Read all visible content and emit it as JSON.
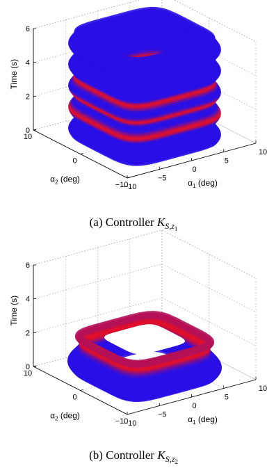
{
  "chart_data": [
    {
      "type": "3d-surface",
      "zlabel": "Time (s)",
      "xlabel_symbol": "α",
      "xlabel_sub": "1",
      "xlabel_unit": " (deg)",
      "ylabel_symbol": "α",
      "ylabel_sub": "2",
      "ylabel_unit": " (deg)",
      "xlim": [
        -10,
        10
      ],
      "ylim": [
        -10,
        10
      ],
      "zlim": [
        0,
        6
      ],
      "x_ticks": [
        "-10",
        "-5",
        "0",
        "5",
        "10"
      ],
      "y_ticks": [
        "-10",
        "0",
        "10"
      ],
      "z_ticks": [
        "0",
        "2",
        "4",
        "6"
      ],
      "grid": true,
      "colors": {
        "low": "#1010ff",
        "high": "#ff1010"
      },
      "t_range": [
        0,
        6
      ],
      "amplitude_deg": 7.5,
      "red_band_times": [
        1.6,
        2.5,
        3.4
      ],
      "caption_prefix": "(a)  Controller ",
      "caption_math": "K",
      "caption_sub": "S,z",
      "caption_subsub": "1"
    },
    {
      "type": "3d-surface",
      "zlabel": "Time (s)",
      "xlabel_symbol": "α",
      "xlabel_sub": "1",
      "xlabel_unit": " (deg)",
      "ylabel_symbol": "α",
      "ylabel_sub": "2",
      "ylabel_unit": " (deg)",
      "xlim": [
        -10,
        10
      ],
      "ylim": [
        -10,
        10
      ],
      "zlim": [
        0,
        6
      ],
      "x_ticks": [
        "-10",
        "-5",
        "0",
        "5",
        "10"
      ],
      "y_ticks": [
        "-10",
        "0",
        "10"
      ],
      "z_ticks": [
        "0",
        "2",
        "4",
        "6"
      ],
      "grid": true,
      "colors": {
        "low": "#1010ff",
        "high": "#ff1010"
      },
      "t_range": [
        0,
        2
      ],
      "amplitude_deg": 7.5,
      "red_band_times": [
        1.8
      ],
      "caption_prefix": "(b)  Controller ",
      "caption_math": "K",
      "caption_sub": "S,z",
      "caption_subsub": "2"
    }
  ]
}
